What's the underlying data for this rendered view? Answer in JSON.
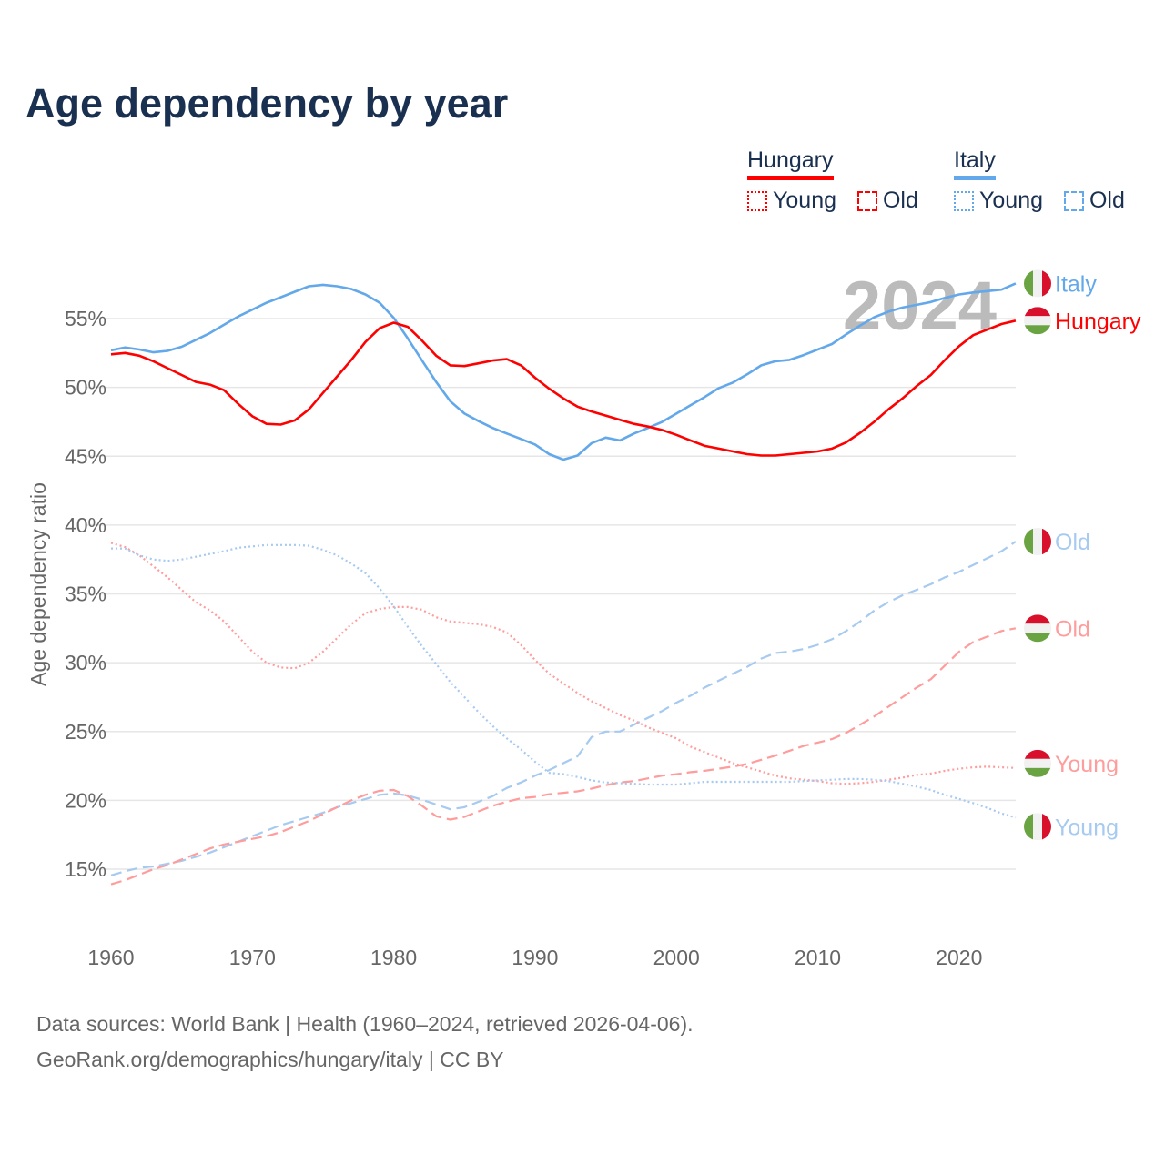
{
  "title": "Age dependency by year",
  "legend": {
    "hungary": {
      "label": "Hungary",
      "young": "Young",
      "old": "Old",
      "color": "#ff0000",
      "light": "#ff9c9c"
    },
    "italy": {
      "label": "Italy",
      "young": "Young",
      "old": "Old",
      "color": "#62a8ea",
      "light": "#a6caf0"
    }
  },
  "year_watermark": "2024",
  "source": {
    "line1": "Data sources: World Bank | Health (1960–2024, retrieved 2026-04-06).",
    "line2": "GeoRank.org/demographics/hungary/italy | CC BY"
  },
  "chart_data": {
    "type": "line",
    "title": "Age dependency by year",
    "xlabel": "",
    "ylabel": "Age dependency ratio",
    "xlim": [
      1960,
      2024
    ],
    "ylim": [
      10,
      58
    ],
    "x_ticks": [
      1960,
      1970,
      1980,
      1990,
      2000,
      2010,
      2020
    ],
    "y_ticks": [
      15,
      20,
      25,
      30,
      35,
      40,
      45,
      50,
      55
    ],
    "y_tick_labels": [
      "15%",
      "20%",
      "25%",
      "30%",
      "35%",
      "40%",
      "45%",
      "50%",
      "55%"
    ],
    "grid": true,
    "x_start": 1960,
    "series": [
      {
        "name": "Italy",
        "end_label": "Italy",
        "country": "italy",
        "style": "solid",
        "color": "#62a8ea",
        "values": [
          52.7,
          52.9,
          52.75,
          52.55,
          52.65,
          52.95,
          53.45,
          53.95,
          54.55,
          55.15,
          55.65,
          56.15,
          56.55,
          56.95,
          57.35,
          57.45,
          57.35,
          57.15,
          56.75,
          56.15,
          55.05,
          53.55,
          51.95,
          50.4,
          49.0,
          48.1,
          47.55,
          47.05,
          46.65,
          46.25,
          45.85,
          45.15,
          44.75,
          45.05,
          45.95,
          46.35,
          46.15,
          46.65,
          47.05,
          47.5,
          48.1,
          48.7,
          49.3,
          49.95,
          50.35,
          50.95,
          51.6,
          51.9,
          52.0,
          52.35,
          52.75,
          53.15,
          53.85,
          54.5,
          55.1,
          55.5,
          55.8,
          56.0,
          56.2,
          56.5,
          56.75,
          56.9,
          57.0,
          57.1,
          57.55
        ]
      },
      {
        "name": "Hungary",
        "end_label": "Hungary",
        "country": "hungary",
        "style": "solid",
        "color": "#ff0000",
        "values": [
          52.4,
          52.5,
          52.3,
          51.9,
          51.4,
          50.9,
          50.4,
          50.2,
          49.8,
          48.8,
          47.9,
          47.35,
          47.3,
          47.6,
          48.4,
          49.6,
          50.8,
          52.0,
          53.3,
          54.3,
          54.7,
          54.4,
          53.4,
          52.3,
          51.6,
          51.55,
          51.75,
          51.95,
          52.05,
          51.6,
          50.7,
          49.9,
          49.2,
          48.6,
          48.25,
          47.95,
          47.65,
          47.35,
          47.15,
          46.9,
          46.55,
          46.15,
          45.75,
          45.55,
          45.35,
          45.15,
          45.05,
          45.05,
          45.15,
          45.25,
          45.35,
          45.55,
          46.0,
          46.7,
          47.5,
          48.4,
          49.2,
          50.1,
          50.9,
          52.0,
          53.0,
          53.8,
          54.2,
          54.6,
          54.85
        ]
      },
      {
        "name": "Italy Old",
        "end_label": "Old",
        "country": "italy",
        "style": "dashed",
        "color": "#a6caf0",
        "values": [
          14.55,
          14.85,
          15.1,
          15.2,
          15.4,
          15.6,
          15.9,
          16.2,
          16.6,
          17.0,
          17.4,
          17.8,
          18.2,
          18.5,
          18.8,
          19.1,
          19.5,
          19.8,
          20.1,
          20.4,
          20.5,
          20.35,
          20.05,
          19.7,
          19.35,
          19.5,
          19.9,
          20.3,
          20.9,
          21.3,
          21.8,
          22.2,
          22.7,
          23.2,
          24.6,
          25.0,
          25.0,
          25.5,
          26.0,
          26.5,
          27.1,
          27.6,
          28.2,
          28.7,
          29.2,
          29.7,
          30.3,
          30.7,
          30.8,
          31.0,
          31.3,
          31.7,
          32.3,
          33.0,
          33.8,
          34.4,
          34.9,
          35.3,
          35.7,
          36.2,
          36.6,
          37.1,
          37.6,
          38.1,
          38.8
        ]
      },
      {
        "name": "Hungary Old",
        "end_label": "Old",
        "country": "hungary",
        "style": "dashed",
        "color": "#ff9c9c",
        "values": [
          13.9,
          14.2,
          14.6,
          15.0,
          15.3,
          15.7,
          16.1,
          16.5,
          16.8,
          17.0,
          17.2,
          17.4,
          17.7,
          18.1,
          18.5,
          19.0,
          19.5,
          20.0,
          20.4,
          20.7,
          20.75,
          20.3,
          19.6,
          18.85,
          18.6,
          18.8,
          19.2,
          19.6,
          19.9,
          20.15,
          20.25,
          20.45,
          20.55,
          20.65,
          20.85,
          21.1,
          21.3,
          21.4,
          21.6,
          21.8,
          21.9,
          22.05,
          22.15,
          22.3,
          22.45,
          22.65,
          22.95,
          23.25,
          23.6,
          23.95,
          24.2,
          24.45,
          24.9,
          25.5,
          26.1,
          26.8,
          27.5,
          28.2,
          28.8,
          29.8,
          30.8,
          31.5,
          31.9,
          32.3,
          32.5
        ]
      },
      {
        "name": "Hungary Young",
        "end_label": "Young",
        "country": "hungary",
        "style": "dotted",
        "color": "#ff9c9c",
        "values": [
          38.7,
          38.4,
          37.8,
          37.0,
          36.2,
          35.3,
          34.4,
          33.8,
          33.0,
          31.9,
          30.8,
          30.0,
          29.65,
          29.6,
          30.0,
          30.8,
          31.8,
          32.8,
          33.6,
          33.9,
          34.05,
          34.05,
          33.85,
          33.3,
          33.0,
          32.9,
          32.8,
          32.6,
          32.2,
          31.3,
          30.2,
          29.2,
          28.5,
          27.8,
          27.2,
          26.7,
          26.2,
          25.8,
          25.3,
          24.9,
          24.5,
          23.9,
          23.5,
          23.1,
          22.7,
          22.4,
          22.1,
          21.8,
          21.6,
          21.5,
          21.4,
          21.25,
          21.2,
          21.25,
          21.35,
          21.5,
          21.65,
          21.85,
          21.95,
          22.15,
          22.3,
          22.4,
          22.45,
          22.4,
          22.35
        ]
      },
      {
        "name": "Italy Young",
        "end_label": "Young",
        "country": "italy",
        "style": "dotted",
        "color": "#a6caf0",
        "values": [
          38.3,
          38.3,
          37.8,
          37.5,
          37.4,
          37.5,
          37.7,
          37.9,
          38.1,
          38.35,
          38.45,
          38.55,
          38.55,
          38.55,
          38.5,
          38.2,
          37.8,
          37.2,
          36.5,
          35.4,
          34.1,
          32.6,
          31.2,
          29.9,
          28.6,
          27.5,
          26.4,
          25.4,
          24.5,
          23.7,
          22.8,
          22.0,
          21.9,
          21.7,
          21.45,
          21.3,
          21.25,
          21.2,
          21.15,
          21.15,
          21.15,
          21.25,
          21.35,
          21.35,
          21.35,
          21.35,
          21.35,
          21.35,
          21.35,
          21.4,
          21.45,
          21.5,
          21.55,
          21.55,
          21.5,
          21.4,
          21.2,
          21.0,
          20.75,
          20.4,
          20.1,
          19.8,
          19.45,
          19.05,
          18.75
        ]
      }
    ]
  }
}
